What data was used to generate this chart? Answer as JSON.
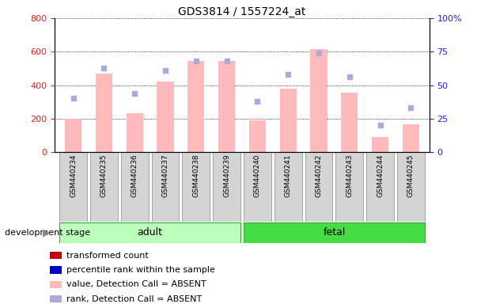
{
  "title": "GDS3814 / 1557224_at",
  "samples": [
    "GSM440234",
    "GSM440235",
    "GSM440236",
    "GSM440237",
    "GSM440238",
    "GSM440239",
    "GSM440240",
    "GSM440241",
    "GSM440242",
    "GSM440243",
    "GSM440244",
    "GSM440245"
  ],
  "bar_values": [
    200,
    470,
    230,
    420,
    545,
    545,
    190,
    380,
    615,
    355,
    90,
    165
  ],
  "rank_values": [
    40,
    63,
    44,
    61,
    68,
    68,
    38,
    58,
    74,
    56,
    20,
    33
  ],
  "adult_indices": [
    0,
    1,
    2,
    3,
    4,
    5
  ],
  "fetal_indices": [
    6,
    7,
    8,
    9,
    10,
    11
  ],
  "adult_color": "#aaffaa",
  "fetal_color": "#44dd44",
  "adult_label": "adult",
  "fetal_label": "fetal",
  "ylim_left": [
    0,
    800
  ],
  "ylim_right": [
    0,
    100
  ],
  "yticks_left": [
    0,
    200,
    400,
    600,
    800
  ],
  "yticks_right": [
    0,
    25,
    50,
    75,
    100
  ],
  "ytick_labels_right": [
    "0",
    "25",
    "50",
    "75",
    "100%"
  ],
  "left_tick_color": "#dd2222",
  "right_tick_color": "#2222dd",
  "bar_color": "#ffbbbb",
  "rank_color": "#aaaadd",
  "dev_stage_label": "development stage",
  "title_fontsize": 10,
  "tick_fontsize": 8,
  "legend_items": [
    {
      "label": "transformed count",
      "color": "#cc0000"
    },
    {
      "label": "percentile rank within the sample",
      "color": "#0000cc"
    },
    {
      "label": "value, Detection Call = ABSENT",
      "color": "#ffbbbb"
    },
    {
      "label": "rank, Detection Call = ABSENT",
      "color": "#aaaadd"
    }
  ]
}
